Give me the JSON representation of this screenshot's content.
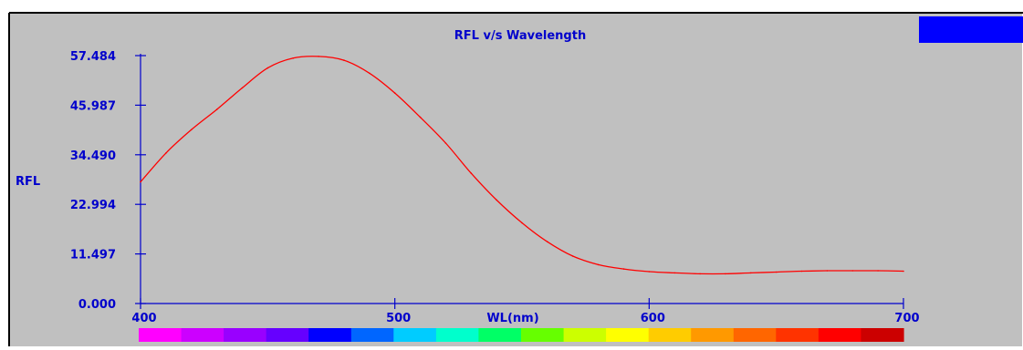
{
  "chart_data": {
    "type": "line",
    "title": "RFL v/s Wavelength",
    "xlabel": "WL(nm)",
    "ylabel": "RFL",
    "xlim": [
      400,
      700
    ],
    "ylim": [
      0.0,
      57.484
    ],
    "x_ticks": [
      400,
      500,
      600,
      700
    ],
    "y_ticks": [
      "0.000",
      "11.497",
      "22.994",
      "34.490",
      "45.987",
      "57.484"
    ],
    "grid": false,
    "legend": "none",
    "series": [
      {
        "x": [
          400,
          410,
          420,
          430,
          440,
          450,
          460,
          470,
          480,
          490,
          500,
          510,
          520,
          530,
          540,
          550,
          560,
          570,
          580,
          590,
          600,
          610,
          620,
          630,
          640,
          650,
          660,
          670,
          680,
          690,
          700
        ],
        "values": [
          28.2,
          34.9,
          40.3,
          45.0,
          50.0,
          54.6,
          56.9,
          57.3,
          56.4,
          53.4,
          48.8,
          43.2,
          37.2,
          30.2,
          24.0,
          18.7,
          14.3,
          11.0,
          9.0,
          8.0,
          7.4,
          7.1,
          6.9,
          6.9,
          7.1,
          7.3,
          7.5,
          7.6,
          7.6,
          7.6,
          7.5
        ],
        "color": "#ff0000"
      }
    ],
    "colors": {
      "plot_background": "#c0c0c0",
      "axis": "#0000cc",
      "text": "#0000cc",
      "legend_box": "#0000ff"
    },
    "spectrum_colors": [
      "#ff00ff",
      "#cc00ff",
      "#9900ff",
      "#6600ff",
      "#0000ff",
      "#0066ff",
      "#00ccff",
      "#00ffcc",
      "#00ff66",
      "#66ff00",
      "#ccff00",
      "#ffff00",
      "#ffcc00",
      "#ff9900",
      "#ff6600",
      "#ff3300",
      "#ff0000",
      "#cc0000"
    ]
  }
}
